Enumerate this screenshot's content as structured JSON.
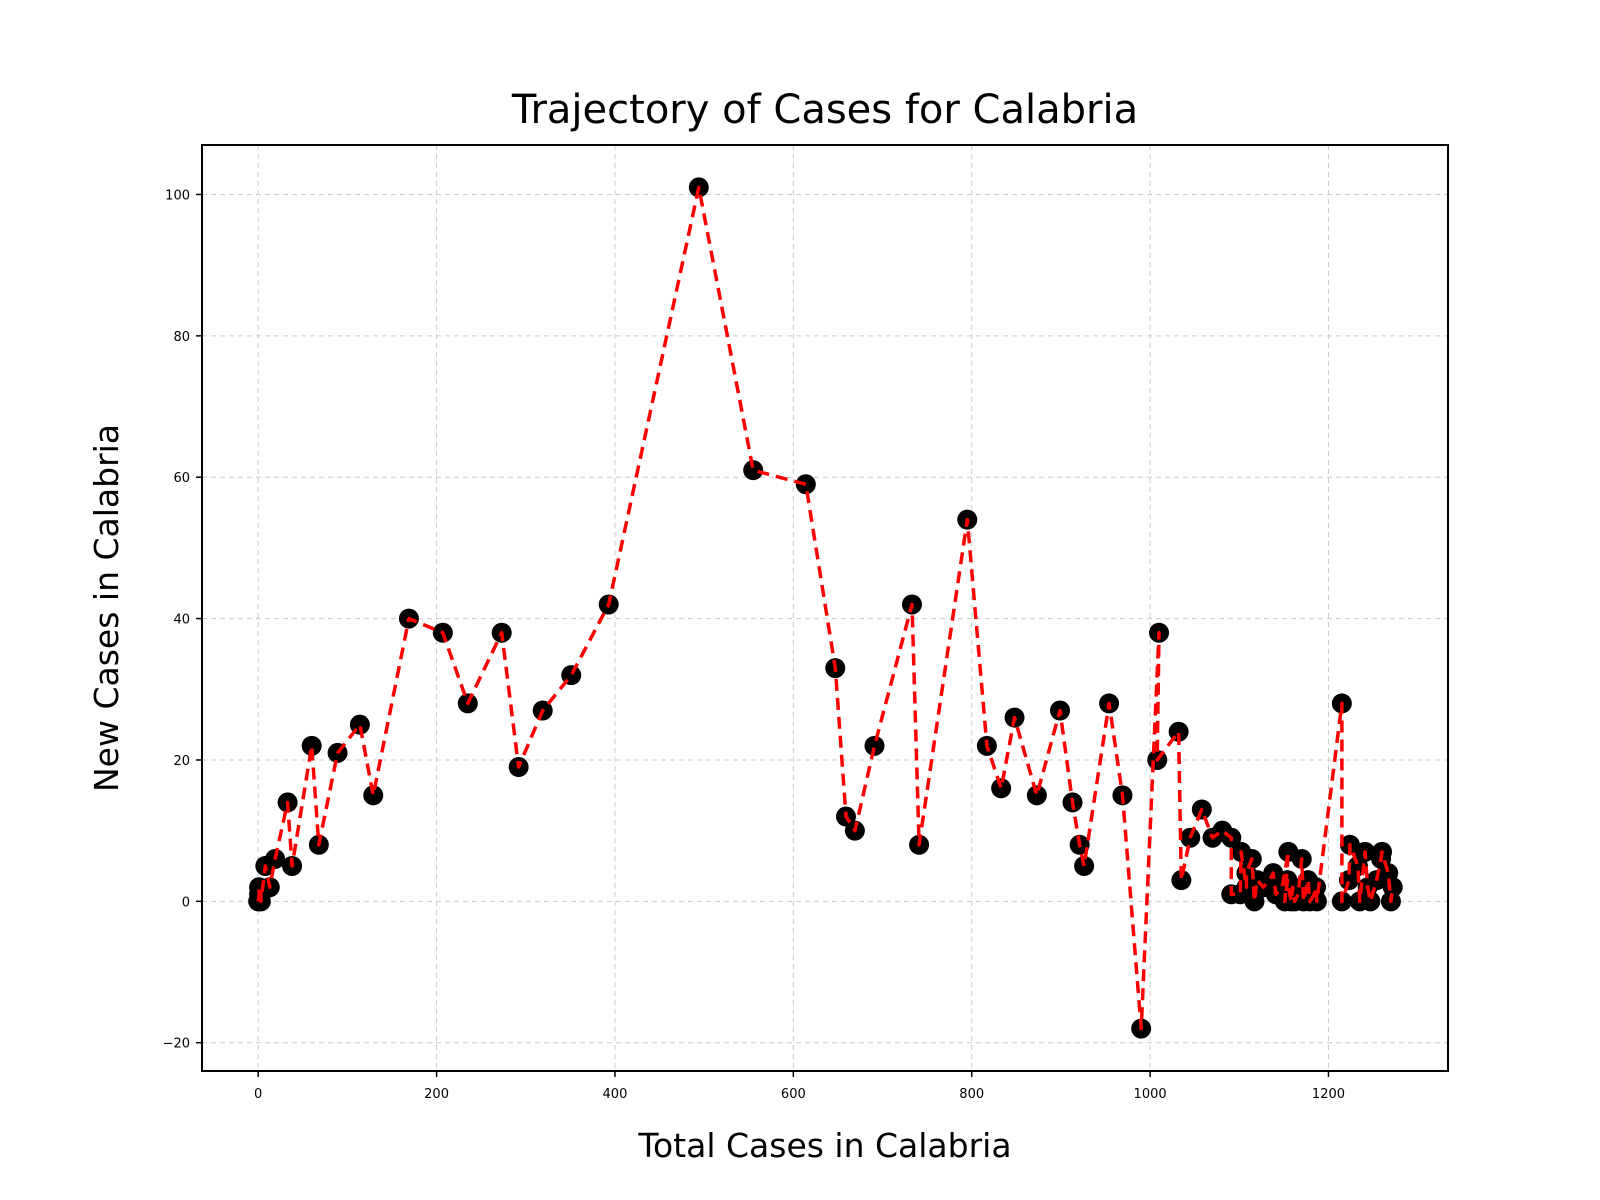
{
  "chart_data": {
    "type": "line",
    "title": "Trajectory of Cases for Calabria",
    "xlabel": "Total Cases in Calabria",
    "ylabel": "New Cases in Calabria",
    "xlim": [
      -63,
      1334
    ],
    "ylim": [
      -24,
      107
    ],
    "xticks": [
      0,
      200,
      400,
      600,
      800,
      1000,
      1200
    ],
    "yticks": [
      -20,
      0,
      20,
      40,
      60,
      80,
      100
    ],
    "grid": true,
    "colors": {
      "line": "#ff0000",
      "marker": "#000000",
      "grid": "#cccccc"
    },
    "series": [
      {
        "x": [
          0,
          1,
          1,
          3,
          3,
          8,
          13,
          19,
          33,
          38,
          60,
          68,
          89,
          114,
          129,
          169,
          207,
          235,
          273,
          292,
          319,
          351,
          393,
          494,
          555,
          614,
          647,
          659,
          669,
          691,
          733,
          741,
          795,
          817,
          833,
          848,
          873,
          899,
          913,
          921,
          926,
          954,
          969,
          990,
          1010,
          1008,
          1032,
          1035,
          1045,
          1058,
          1070,
          1081,
          1091,
          1091,
          1101,
          1102,
          1108,
          1108,
          1114,
          1117,
          1120,
          1127,
          1134,
          1138,
          1141,
          1148,
          1155,
          1151,
          1154,
          1158,
          1160,
          1162,
          1166,
          1170,
          1172,
          1177,
          1179,
          1184,
          1186,
          1187,
          1215,
          1215,
          1223,
          1224,
          1233,
          1235,
          1241,
          1244,
          1247,
          1254,
          1259,
          1260,
          1267,
          1270,
          1272
        ],
        "y": [
          0,
          1,
          2,
          1,
          0,
          5,
          2,
          6,
          14,
          5,
          22,
          8,
          21,
          25,
          15,
          40,
          38,
          28,
          38,
          19,
          27,
          32,
          42,
          101,
          61,
          59,
          33,
          12,
          10,
          22,
          42,
          8,
          54,
          22,
          16,
          26,
          15,
          27,
          14,
          8,
          5,
          28,
          15,
          -18,
          38,
          20,
          24,
          3,
          9,
          13,
          9,
          10,
          9,
          1,
          1,
          7,
          2,
          4,
          6,
          0,
          3,
          2,
          3,
          4,
          1,
          2,
          7,
          0,
          3,
          0,
          2,
          0,
          1,
          6,
          0,
          3,
          0,
          1,
          2,
          0,
          28,
          0,
          3,
          8,
          5,
          0,
          7,
          2,
          0,
          3,
          6,
          7,
          4,
          0,
          2
        ]
      }
    ]
  }
}
